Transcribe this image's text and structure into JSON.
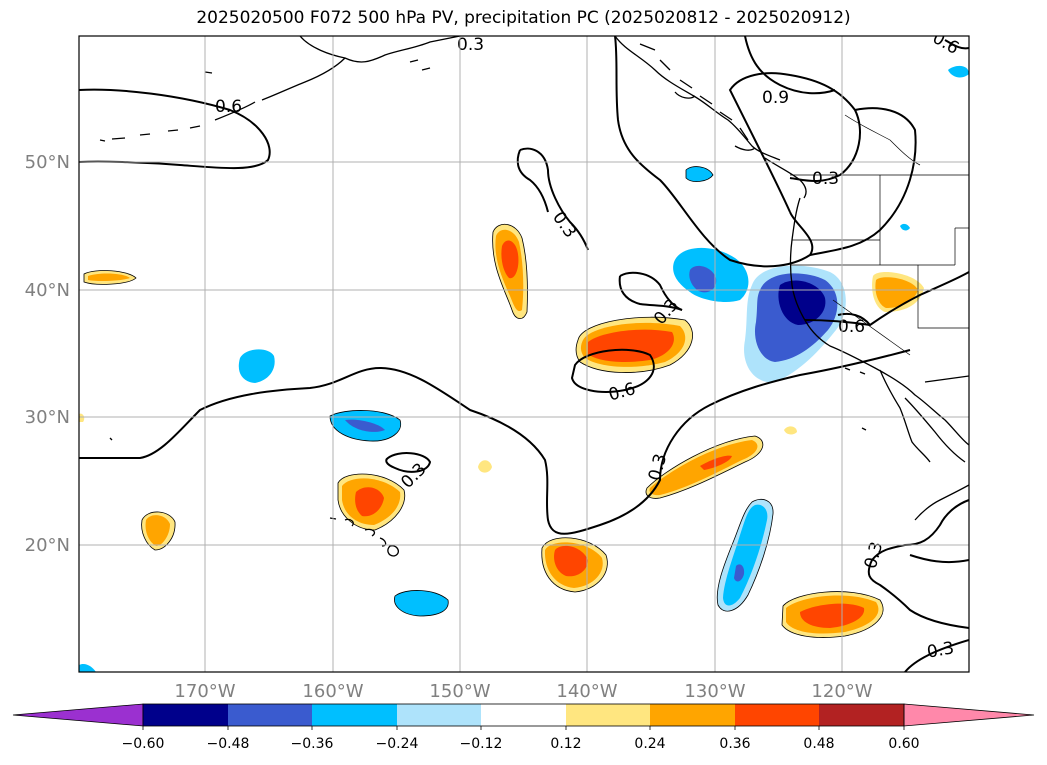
{
  "title": "2025020500 F072 500 hPa PV, precipitation PC (2025020812 - 2025020912)",
  "lon_labels": [
    "170°W",
    "160°W",
    "150°W",
    "140°W",
    "130°W",
    "120°W"
  ],
  "lat_labels": [
    "50°N",
    "40°N",
    "30°N",
    "20°N"
  ],
  "colorbar": {
    "tick_labels": [
      "−0.60",
      "−0.48",
      "−0.36",
      "−0.24",
      "−0.12",
      "0.12",
      "0.24",
      "0.36",
      "0.48",
      "0.60"
    ],
    "colors": [
      "#9b30d0",
      "#00008b",
      "#3a5bcf",
      "#00bfff",
      "#aee3fb",
      "#ffffff",
      "#ffe680",
      "#ffa500",
      "#ff4500",
      "#b22222",
      "#ff88aa"
    ]
  },
  "contour_labels": [
    "0.3",
    "0.6",
    "0.9"
  ],
  "colors": {
    "land_line": "#000000",
    "grid": "#b0b0b0",
    "axis_label": "#808080"
  }
}
